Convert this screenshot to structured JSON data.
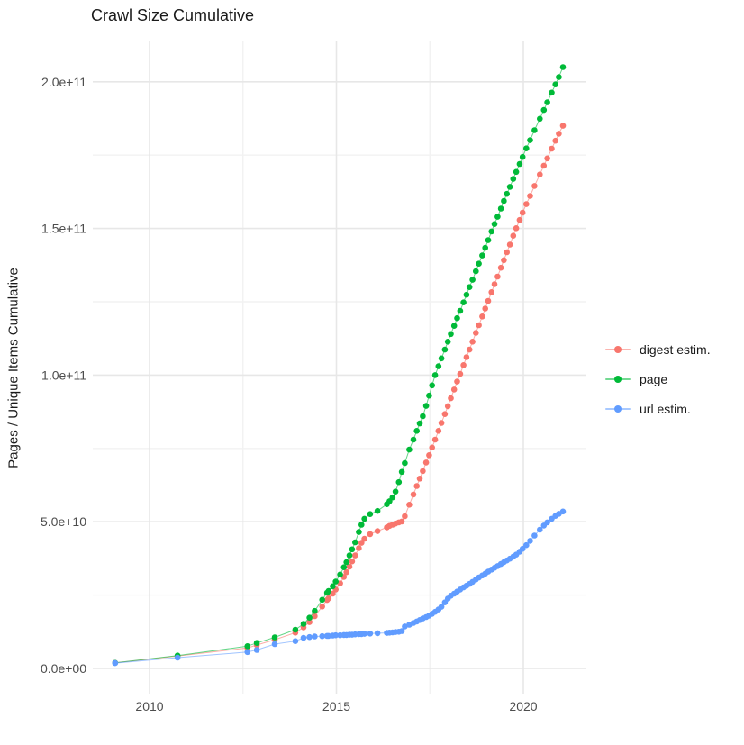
{
  "title": "Crawl Size Cumulative",
  "axes": {
    "y_label": "Pages / Unique Items Cumulative",
    "x_ticks": [
      {
        "label": "2010",
        "year": 2010
      },
      {
        "label": "2015",
        "year": 2015
      },
      {
        "label": "2020",
        "year": 2020
      }
    ],
    "x_minor_years": [
      2012.5,
      2017.5
    ],
    "y_ticks": [
      {
        "label": "0.0e+00",
        "value_e9": 0
      },
      {
        "label": "5.0e+10",
        "value_e9": 50
      },
      {
        "label": "1.0e+11",
        "value_e9": 100
      },
      {
        "label": "1.5e+11",
        "value_e9": 150
      },
      {
        "label": "2.0e+11",
        "value_e9": 200
      }
    ],
    "y_minor_e9": [
      25,
      75,
      125,
      175
    ]
  },
  "style": {
    "grid_major_color": "#e7e7e7",
    "grid_minor_color": "#f2f2f2",
    "tick_label_color": "#4d4d4d",
    "text_color": "#1a1a1a",
    "background": "#ffffff"
  },
  "legend": {
    "items": [
      {
        "label": "digest estim.",
        "color": "#F8766D"
      },
      {
        "label": "page",
        "color": "#00BA38"
      },
      {
        "label": "url estim.",
        "color": "#619CFF"
      }
    ]
  },
  "chart_data": {
    "type": "line",
    "title": "Crawl Size Cumulative",
    "xlabel": "",
    "ylabel": "Pages / Unique Items Cumulative",
    "x_unit": "year (decimal, one point per crawl)",
    "y_unit": "cumulative count (billions of items, 1 = 1e9)",
    "xlim": [
      2008.5,
      2021.7
    ],
    "ylim_e9": [
      0,
      205
    ],
    "grid": true,
    "legend_position": "right",
    "marker": "filled-circle",
    "series": [
      {
        "name": "digest estim.",
        "color": "#F8766D",
        "points": [
          [
            2009.08,
            1.9
          ],
          [
            2010.75,
            4.2
          ],
          [
            2012.62,
            7.0
          ],
          [
            2012.87,
            8.0
          ],
          [
            2013.35,
            9.8
          ],
          [
            2013.9,
            12.2
          ],
          [
            2014.12,
            14.0
          ],
          [
            2014.28,
            15.8
          ],
          [
            2014.42,
            17.8
          ],
          [
            2014.62,
            21.1
          ],
          [
            2014.75,
            23.3
          ],
          [
            2014.79,
            23.9
          ],
          [
            2014.9,
            25.5
          ],
          [
            2014.98,
            26.9
          ],
          [
            2015.1,
            29.0
          ],
          [
            2015.2,
            31.2
          ],
          [
            2015.27,
            32.8
          ],
          [
            2015.35,
            34.7
          ],
          [
            2015.42,
            36.5
          ],
          [
            2015.5,
            38.5
          ],
          [
            2015.6,
            41.0
          ],
          [
            2015.67,
            42.8
          ],
          [
            2015.75,
            44.2
          ],
          [
            2015.9,
            45.8
          ],
          [
            2016.1,
            46.8
          ],
          [
            2016.35,
            48.1
          ],
          [
            2016.42,
            48.6
          ],
          [
            2016.5,
            49.0
          ],
          [
            2016.58,
            49.4
          ],
          [
            2016.67,
            49.8
          ],
          [
            2016.75,
            50.1
          ],
          [
            2016.83,
            51.9
          ],
          [
            2016.95,
            55.8
          ],
          [
            2017.06,
            59.3
          ],
          [
            2017.15,
            62.2
          ],
          [
            2017.23,
            64.7
          ],
          [
            2017.31,
            67.3
          ],
          [
            2017.4,
            70.2
          ],
          [
            2017.48,
            72.7
          ],
          [
            2017.56,
            75.3
          ],
          [
            2017.64,
            78.0
          ],
          [
            2017.73,
            81.0
          ],
          [
            2017.81,
            83.7
          ],
          [
            2017.9,
            86.7
          ],
          [
            2017.98,
            89.4
          ],
          [
            2018.06,
            92.1
          ],
          [
            2018.15,
            95.1
          ],
          [
            2018.23,
            97.8
          ],
          [
            2018.31,
            100.4
          ],
          [
            2018.4,
            103.4
          ],
          [
            2018.48,
            106.1
          ],
          [
            2018.56,
            108.7
          ],
          [
            2018.64,
            111.4
          ],
          [
            2018.73,
            114.4
          ],
          [
            2018.81,
            117.0
          ],
          [
            2018.9,
            120.0
          ],
          [
            2018.98,
            122.7
          ],
          [
            2019.06,
            125.3
          ],
          [
            2019.15,
            128.3
          ],
          [
            2019.23,
            131.0
          ],
          [
            2019.31,
            133.6
          ],
          [
            2019.4,
            136.6
          ],
          [
            2019.48,
            139.2
          ],
          [
            2019.56,
            141.9
          ],
          [
            2019.64,
            144.5
          ],
          [
            2019.73,
            147.5
          ],
          [
            2019.81,
            150.1
          ],
          [
            2019.9,
            152.9
          ],
          [
            2019.98,
            155.4
          ],
          [
            2020.08,
            158.3
          ],
          [
            2020.18,
            161.1
          ],
          [
            2020.3,
            164.5
          ],
          [
            2020.44,
            168.4
          ],
          [
            2020.55,
            171.4
          ],
          [
            2020.64,
            173.9
          ],
          [
            2020.76,
            177.2
          ],
          [
            2020.86,
            179.9
          ],
          [
            2020.95,
            182.3
          ],
          [
            2021.06,
            185.0
          ]
        ]
      },
      {
        "name": "page",
        "color": "#00BA38",
        "points": [
          [
            2009.08,
            1.9
          ],
          [
            2010.75,
            4.4
          ],
          [
            2012.62,
            7.6
          ],
          [
            2012.87,
            8.7
          ],
          [
            2013.35,
            10.6
          ],
          [
            2013.9,
            13.2
          ],
          [
            2014.12,
            15.2
          ],
          [
            2014.28,
            17.3
          ],
          [
            2014.42,
            19.6
          ],
          [
            2014.62,
            23.4
          ],
          [
            2014.75,
            25.8
          ],
          [
            2014.79,
            26.4
          ],
          [
            2014.9,
            28.0
          ],
          [
            2014.98,
            29.6
          ],
          [
            2015.1,
            32.0
          ],
          [
            2015.2,
            34.5
          ],
          [
            2015.27,
            36.2
          ],
          [
            2015.35,
            38.5
          ],
          [
            2015.42,
            40.6
          ],
          [
            2015.5,
            43.0
          ],
          [
            2015.6,
            46.5
          ],
          [
            2015.67,
            49.0
          ],
          [
            2015.75,
            51.0
          ],
          [
            2015.9,
            52.6
          ],
          [
            2016.1,
            53.7
          ],
          [
            2016.35,
            56.0
          ],
          [
            2016.42,
            57.0
          ],
          [
            2016.5,
            58.3
          ],
          [
            2016.58,
            60.3
          ],
          [
            2016.67,
            63.5
          ],
          [
            2016.75,
            67.0
          ],
          [
            2016.83,
            70.0
          ],
          [
            2016.95,
            74.6
          ],
          [
            2017.06,
            78.0
          ],
          [
            2017.15,
            81.0
          ],
          [
            2017.23,
            83.5
          ],
          [
            2017.31,
            86.0
          ],
          [
            2017.4,
            89.5
          ],
          [
            2017.48,
            93.0
          ],
          [
            2017.56,
            96.5
          ],
          [
            2017.64,
            100.0
          ],
          [
            2017.73,
            103.0
          ],
          [
            2017.81,
            105.7
          ],
          [
            2017.9,
            108.7
          ],
          [
            2017.98,
            111.4
          ],
          [
            2018.06,
            114.0
          ],
          [
            2018.15,
            116.8
          ],
          [
            2018.23,
            119.4
          ],
          [
            2018.31,
            121.9
          ],
          [
            2018.4,
            124.8
          ],
          [
            2018.48,
            127.4
          ],
          [
            2018.56,
            130.0
          ],
          [
            2018.64,
            132.5
          ],
          [
            2018.73,
            135.4
          ],
          [
            2018.81,
            138.0
          ],
          [
            2018.9,
            140.8
          ],
          [
            2018.98,
            143.4
          ],
          [
            2019.06,
            146.0
          ],
          [
            2019.15,
            149.0
          ],
          [
            2019.23,
            151.5
          ],
          [
            2019.31,
            154.0
          ],
          [
            2019.4,
            156.8
          ],
          [
            2019.48,
            159.4
          ],
          [
            2019.56,
            161.8
          ],
          [
            2019.64,
            164.2
          ],
          [
            2019.73,
            166.9
          ],
          [
            2019.81,
            169.3
          ],
          [
            2019.9,
            172.0
          ],
          [
            2019.98,
            174.4
          ],
          [
            2020.08,
            177.3
          ],
          [
            2020.18,
            180.1
          ],
          [
            2020.3,
            183.5
          ],
          [
            2020.44,
            187.4
          ],
          [
            2020.55,
            190.4
          ],
          [
            2020.64,
            193.0
          ],
          [
            2020.76,
            196.3
          ],
          [
            2020.86,
            199.1
          ],
          [
            2020.95,
            201.6
          ],
          [
            2021.06,
            205.0
          ]
        ]
      },
      {
        "name": "url estim.",
        "color": "#619CFF",
        "points": [
          [
            2009.08,
            1.8
          ],
          [
            2010.75,
            3.7
          ],
          [
            2012.62,
            5.6
          ],
          [
            2012.87,
            6.3
          ],
          [
            2013.35,
            8.3
          ],
          [
            2013.9,
            9.3
          ],
          [
            2014.12,
            10.4
          ],
          [
            2014.28,
            10.7
          ],
          [
            2014.42,
            10.9
          ],
          [
            2014.62,
            11.0
          ],
          [
            2014.75,
            11.1
          ],
          [
            2014.79,
            11.1
          ],
          [
            2014.9,
            11.2
          ],
          [
            2014.98,
            11.3
          ],
          [
            2015.1,
            11.3
          ],
          [
            2015.2,
            11.4
          ],
          [
            2015.27,
            11.4
          ],
          [
            2015.35,
            11.5
          ],
          [
            2015.42,
            11.5
          ],
          [
            2015.5,
            11.6
          ],
          [
            2015.6,
            11.7
          ],
          [
            2015.67,
            11.7
          ],
          [
            2015.75,
            11.8
          ],
          [
            2015.9,
            11.9
          ],
          [
            2016.1,
            12.0
          ],
          [
            2016.35,
            12.1
          ],
          [
            2016.42,
            12.2
          ],
          [
            2016.5,
            12.3
          ],
          [
            2016.58,
            12.4
          ],
          [
            2016.67,
            12.5
          ],
          [
            2016.75,
            12.7
          ],
          [
            2016.83,
            14.3
          ],
          [
            2016.95,
            14.9
          ],
          [
            2017.06,
            15.5
          ],
          [
            2017.15,
            16.0
          ],
          [
            2017.23,
            16.5
          ],
          [
            2017.31,
            17.0
          ],
          [
            2017.4,
            17.5
          ],
          [
            2017.48,
            18.0
          ],
          [
            2017.56,
            18.6
          ],
          [
            2017.64,
            19.3
          ],
          [
            2017.73,
            20.1
          ],
          [
            2017.81,
            21.0
          ],
          [
            2017.9,
            22.5
          ],
          [
            2017.98,
            23.8
          ],
          [
            2018.06,
            24.8
          ],
          [
            2018.15,
            25.5
          ],
          [
            2018.23,
            26.2
          ],
          [
            2018.31,
            26.9
          ],
          [
            2018.4,
            27.6
          ],
          [
            2018.48,
            28.2
          ],
          [
            2018.56,
            28.8
          ],
          [
            2018.64,
            29.5
          ],
          [
            2018.73,
            30.3
          ],
          [
            2018.81,
            31.0
          ],
          [
            2018.9,
            31.7
          ],
          [
            2018.98,
            32.3
          ],
          [
            2019.06,
            33.0
          ],
          [
            2019.15,
            33.7
          ],
          [
            2019.23,
            34.3
          ],
          [
            2019.31,
            34.9
          ],
          [
            2019.4,
            35.6
          ],
          [
            2019.48,
            36.2
          ],
          [
            2019.56,
            36.8
          ],
          [
            2019.64,
            37.4
          ],
          [
            2019.73,
            38.1
          ],
          [
            2019.81,
            38.8
          ],
          [
            2019.9,
            39.8
          ],
          [
            2019.98,
            40.8
          ],
          [
            2020.08,
            42.0
          ],
          [
            2020.18,
            43.5
          ],
          [
            2020.3,
            45.3
          ],
          [
            2020.44,
            47.3
          ],
          [
            2020.55,
            48.7
          ],
          [
            2020.64,
            49.8
          ],
          [
            2020.76,
            51.0
          ],
          [
            2020.86,
            52.0
          ],
          [
            2020.95,
            52.7
          ],
          [
            2021.06,
            53.5
          ]
        ]
      }
    ]
  }
}
